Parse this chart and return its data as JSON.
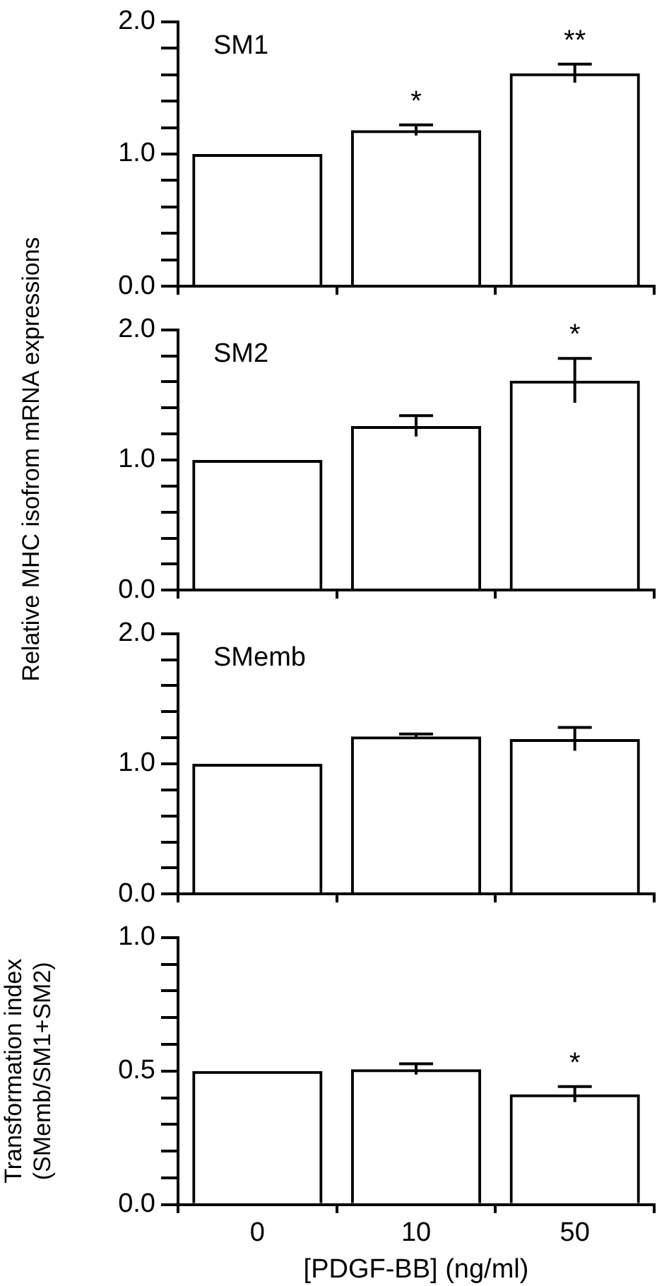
{
  "chart_data": [
    {
      "type": "bar",
      "title": "SM1",
      "categories": [
        "0",
        "10",
        "50"
      ],
      "series": [
        {
          "color": "#000000",
          "values": [
            1.0,
            1.18,
            1.61
          ],
          "errors": [
            null,
            0.04,
            0.07
          ]
        }
      ],
      "ylim": [
        0,
        2
      ],
      "yticks": [
        {
          "value": 0,
          "label": "0.0"
        },
        {
          "value": 0.2,
          "label": null
        },
        {
          "value": 0.4,
          "label": null
        },
        {
          "value": 0.6,
          "label": null
        },
        {
          "value": 0.8,
          "label": null
        },
        {
          "value": 1,
          "label": "1.0"
        },
        {
          "value": 1.2,
          "label": null
        },
        {
          "value": 1.4,
          "label": null
        },
        {
          "value": 1.6,
          "label": null
        },
        {
          "value": 1.8,
          "label": null
        },
        {
          "value": 2,
          "label": "2.0"
        }
      ],
      "tick_labels": "y",
      "grid": false,
      "legend": false,
      "annotations": [
        {
          "text": "*",
          "x": "10",
          "y": 1.22
        },
        {
          "text": "**",
          "x": "50",
          "y": 1.68
        }
      ]
    },
    {
      "type": "bar",
      "title": "SM2",
      "ylabel": "Relative MHC isofrom mRNA expressions",
      "categories": [
        "0",
        "10",
        "50"
      ],
      "series": [
        {
          "color": "#000000",
          "values": [
            1.0,
            1.26,
            1.61
          ],
          "errors": [
            null,
            0.08,
            0.17
          ]
        }
      ],
      "ylim": [
        0,
        2
      ],
      "yticks": [
        {
          "value": 0,
          "label": "0.0"
        },
        {
          "value": 0.2,
          "label": null
        },
        {
          "value": 0.4,
          "label": null
        },
        {
          "value": 0.6,
          "label": null
        },
        {
          "value": 0.8,
          "label": null
        },
        {
          "value": 1,
          "label": "1.0"
        },
        {
          "value": 1.2,
          "label": null
        },
        {
          "value": 1.4,
          "label": null
        },
        {
          "value": 1.6,
          "label": null
        },
        {
          "value": 1.8,
          "label": null
        },
        {
          "value": 2,
          "label": "2.0"
        }
      ],
      "tick_labels": "y",
      "grid": false,
      "legend": false,
      "annotations": [
        {
          "text": "*",
          "x": "50",
          "y": 1.78
        }
      ]
    },
    {
      "type": "bar",
      "title": "SMemb",
      "categories": [
        "0",
        "10",
        "50"
      ],
      "series": [
        {
          "color": "#000000",
          "values": [
            1.0,
            1.21,
            1.19
          ],
          "errors": [
            null,
            0.02,
            0.09
          ]
        }
      ],
      "ylim": [
        0,
        2
      ],
      "yticks": [
        {
          "value": 0,
          "label": "0.0"
        },
        {
          "value": 0.2,
          "label": null
        },
        {
          "value": 0.4,
          "label": null
        },
        {
          "value": 0.6,
          "label": null
        },
        {
          "value": 0.8,
          "label": null
        },
        {
          "value": 1,
          "label": "1.0"
        },
        {
          "value": 1.2,
          "label": null
        },
        {
          "value": 1.4,
          "label": null
        },
        {
          "value": 1.6,
          "label": null
        },
        {
          "value": 1.8,
          "label": null
        },
        {
          "value": 2,
          "label": "2.0"
        }
      ],
      "tick_labels": "y",
      "grid": false,
      "legend": false
    },
    {
      "type": "bar",
      "xlabel": "[PDGF-BB] (ng/ml)",
      "ylabel": "Transformation index\n(SMemb/SM1+SM2)",
      "categories": [
        "0",
        "10",
        "50"
      ],
      "series": [
        {
          "color": "#000000",
          "values": [
            0.5,
            0.507,
            0.413
          ],
          "errors": [
            null,
            0.02,
            0.029
          ]
        }
      ],
      "ylim": [
        0,
        1
      ],
      "yticks": [
        {
          "value": 0,
          "label": "0.0"
        },
        {
          "value": 0.1,
          "label": null
        },
        {
          "value": 0.2,
          "label": null
        },
        {
          "value": 0.3,
          "label": null
        },
        {
          "value": 0.4,
          "label": null
        },
        {
          "value": 0.5,
          "label": "0.5"
        },
        {
          "value": 0.6,
          "label": null
        },
        {
          "value": 0.7,
          "label": null
        },
        {
          "value": 0.8,
          "label": null
        },
        {
          "value": 0.9,
          "label": null
        },
        {
          "value": 1,
          "label": "1.0"
        }
      ],
      "grid": false,
      "legend": false,
      "annotations": [
        {
          "text": "*",
          "x": "50",
          "y": 0.442
        }
      ]
    }
  ]
}
